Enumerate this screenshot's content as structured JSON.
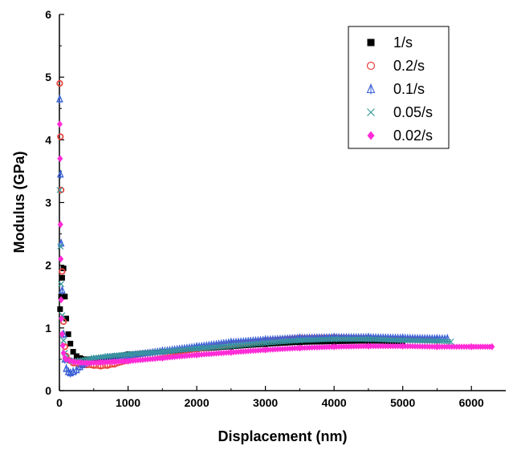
{
  "chart_data": {
    "type": "scatter",
    "title": "",
    "xlabel": "Displacement (nm)",
    "ylabel": "Modulus (GPa)",
    "xlim": [
      0,
      6500
    ],
    "ylim": [
      0,
      6
    ],
    "xticks": [
      0,
      1000,
      2000,
      3000,
      4000,
      5000,
      6000
    ],
    "yticks": [
      0,
      1,
      2,
      3,
      4,
      5,
      6
    ],
    "grid": false,
    "legend_position": "top-right",
    "series": [
      {
        "name": "1/s",
        "color": "#000000",
        "marker": "square",
        "x": [
          10,
          25,
          40,
          60,
          80,
          100,
          130,
          160,
          200,
          250,
          300,
          400,
          600,
          800,
          1000,
          1500,
          2000,
          2500,
          3000,
          3500,
          4000,
          4500,
          5000
        ],
        "y": [
          1.3,
          1.5,
          1.8,
          1.95,
          1.5,
          1.15,
          0.9,
          0.75,
          0.62,
          0.55,
          0.52,
          0.5,
          0.52,
          0.55,
          0.58,
          0.62,
          0.66,
          0.7,
          0.74,
          0.77,
          0.78,
          0.79,
          0.78
        ]
      },
      {
        "name": "0.2/s",
        "color": "#e8413b",
        "marker": "circle-open",
        "x": [
          5,
          15,
          25,
          40,
          60,
          80,
          100,
          150,
          200,
          300,
          400,
          500,
          600,
          700,
          800,
          1000,
          1500,
          2000,
          2500,
          3000,
          3500,
          4000,
          4500,
          5000,
          5500
        ],
        "y": [
          4.9,
          4.05,
          3.2,
          1.9,
          1.1,
          0.7,
          0.55,
          0.48,
          0.44,
          0.42,
          0.41,
          0.4,
          0.39,
          0.4,
          0.42,
          0.48,
          0.58,
          0.66,
          0.74,
          0.8,
          0.84,
          0.85,
          0.84,
          0.82,
          0.8
        ]
      },
      {
        "name": "0.1/s",
        "color": "#3d63d6",
        "marker": "triangle-cross",
        "x": [
          5,
          15,
          25,
          40,
          60,
          80,
          100,
          130,
          160,
          200,
          250,
          300,
          400,
          500,
          700,
          1000,
          1500,
          2000,
          2500,
          3000,
          3500,
          4000,
          4500,
          5000,
          5500,
          5650
        ],
        "y": [
          4.65,
          3.45,
          2.35,
          1.6,
          0.9,
          0.5,
          0.35,
          0.3,
          0.28,
          0.3,
          0.33,
          0.38,
          0.45,
          0.5,
          0.53,
          0.56,
          0.63,
          0.7,
          0.77,
          0.81,
          0.84,
          0.85,
          0.85,
          0.84,
          0.83,
          0.83
        ]
      },
      {
        "name": "0.05/s",
        "color": "#3a9a9a",
        "marker": "cross",
        "x": [
          5,
          15,
          25,
          40,
          60,
          80,
          100,
          150,
          200,
          300,
          400,
          500,
          700,
          1000,
          1500,
          2000,
          2500,
          3000,
          3500,
          4000,
          4500,
          5000,
          5500,
          5700
        ],
        "y": [
          3.2,
          2.3,
          1.7,
          1.2,
          0.8,
          0.6,
          0.52,
          0.48,
          0.47,
          0.48,
          0.5,
          0.52,
          0.55,
          0.58,
          0.62,
          0.67,
          0.71,
          0.76,
          0.8,
          0.82,
          0.82,
          0.8,
          0.79,
          0.78
        ]
      },
      {
        "name": "0.02/s",
        "color": "#ff2bd6",
        "marker": "diamond",
        "x": [
          5,
          10,
          15,
          20,
          25,
          30,
          40,
          50,
          60,
          80,
          100,
          150,
          200,
          300,
          400,
          600,
          800,
          1000,
          1500,
          2000,
          2500,
          3000,
          3500,
          4000,
          4500,
          5000,
          5500,
          6000,
          6300
        ],
        "y": [
          4.25,
          3.7,
          2.65,
          2.1,
          1.45,
          1.15,
          0.9,
          0.72,
          0.6,
          0.52,
          0.5,
          0.48,
          0.46,
          0.45,
          0.44,
          0.45,
          0.46,
          0.47,
          0.52,
          0.57,
          0.61,
          0.65,
          0.68,
          0.7,
          0.71,
          0.71,
          0.7,
          0.7,
          0.7
        ]
      }
    ]
  }
}
